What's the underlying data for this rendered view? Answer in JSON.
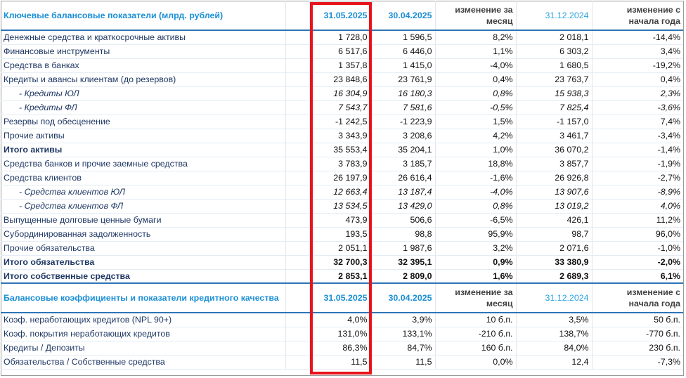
{
  "header": {
    "title": "Ключевые балансовые показатели (млрд. рублей)",
    "col_d1": "31.05.2025",
    "col_d2": "30.04.2025",
    "col_mom": "изменение за месяц",
    "col_ye": "31.12.2024",
    "col_ytd": "изменение с начала года"
  },
  "balance_rows": [
    {
      "label": "Денежные средства и краткосрочные активы",
      "d1": "1 728,0",
      "d2": "1 596,5",
      "mom": "8,2%",
      "ye": "2 018,1",
      "ytd": "-14,4%",
      "style": "data"
    },
    {
      "label": "Финансовые инструменты",
      "d1": "6 517,6",
      "d2": "6 446,0",
      "mom": "1,1%",
      "ye": "6 303,2",
      "ytd": "3,4%",
      "style": "data"
    },
    {
      "label": "Средства в банках",
      "d1": "1 357,8",
      "d2": "1 415,0",
      "mom": "-4,0%",
      "ye": "1 680,5",
      "ytd": "-19,2%",
      "style": "data"
    },
    {
      "label": "Кредиты и авансы клиентам (до резервов)",
      "d1": "23 848,6",
      "d2": "23 761,9",
      "mom": "0,4%",
      "ye": "23 763,7",
      "ytd": "0,4%",
      "style": "data"
    },
    {
      "label": "-   Кредиты ЮЛ",
      "d1": "16 304,9",
      "d2": "16 180,3",
      "mom": "0,8%",
      "ye": "15 938,3",
      "ytd": "2,3%",
      "style": "sub"
    },
    {
      "label": "-   Кредиты ФЛ",
      "d1": "7 543,7",
      "d2": "7 581,6",
      "mom": "-0,5%",
      "ye": "7 825,4",
      "ytd": "-3,6%",
      "style": "sub"
    },
    {
      "label": "Резервы под обесценение",
      "d1": "-1 242,5",
      "d2": "-1 223,9",
      "mom": "1,5%",
      "ye": "-1 157,0",
      "ytd": "7,4%",
      "style": "data"
    },
    {
      "label": "Прочие активы",
      "d1": "3 343,9",
      "d2": "3 208,6",
      "mom": "4,2%",
      "ye": "3 461,7",
      "ytd": "-3,4%",
      "style": "data"
    },
    {
      "label": "Итого активы",
      "d1": "35 553,4",
      "d2": "35 204,1",
      "mom": "1,0%",
      "ye": "36 070,2",
      "ytd": "-1,4%",
      "style": "bold-label"
    },
    {
      "label": "Средства банков и прочие заемные средства",
      "d1": "3 783,9",
      "d2": "3 185,7",
      "mom": "18,8%",
      "ye": "3 857,7",
      "ytd": "-1,9%",
      "style": "data"
    },
    {
      "label": "Средства клиентов",
      "d1": "26 197,9",
      "d2": "26 616,4",
      "mom": "-1,6%",
      "ye": "26 926,8",
      "ytd": "-2,7%",
      "style": "data"
    },
    {
      "label": "-   Средства клиентов ЮЛ",
      "d1": "12 663,4",
      "d2": "13 187,4",
      "mom": "-4,0%",
      "ye": "13 907,6",
      "ytd": "-8,9%",
      "style": "sub"
    },
    {
      "label": "-   Средства клиентов ФЛ",
      "d1": "13 534,5",
      "d2": "13 429,0",
      "mom": "0,8%",
      "ye": "13 019,2",
      "ytd": "4,0%",
      "style": "sub"
    },
    {
      "label": "Выпущенные долговые ценные бумаги",
      "d1": "473,9",
      "d2": "506,6",
      "mom": "-6,5%",
      "ye": "426,1",
      "ytd": "11,2%",
      "style": "data"
    },
    {
      "label": "Субординированная задолженность",
      "d1": "193,5",
      "d2": "98,8",
      "mom": "95,9%",
      "ye": "98,7",
      "ytd": "96,0%",
      "style": "data"
    },
    {
      "label": "Прочие обязательства",
      "d1": "2 051,1",
      "d2": "1 987,6",
      "mom": "3,2%",
      "ye": "2 071,6",
      "ytd": "-1,0%",
      "style": "data"
    },
    {
      "label": "Итого обязательства",
      "d1": "32 700,3",
      "d2": "32 395,1",
      "mom": "0,9%",
      "ye": "33 380,9",
      "ytd": "-2,0%",
      "style": "bold"
    },
    {
      "label": "Итого собственные средства",
      "d1": "2 853,1",
      "d2": "2 809,0",
      "mom": "1,6%",
      "ye": "2 689,3",
      "ytd": "6,1%",
      "style": "bold"
    }
  ],
  "header2": {
    "title": "Балансовые коэффициенты  и показатели кредитного качества",
    "col_d1": "31.05.2025",
    "col_d2": "30.04.2025",
    "col_mom": "изменение за месяц",
    "col_ye": "31.12.2024",
    "col_ytd": "изменение с начала года"
  },
  "ratio_rows": [
    {
      "label": "Коэф. неработающих кредитов (NPL 90+)",
      "d1": "4,0%",
      "d2": "3,9%",
      "mom": "10 б.п.",
      "ye": "3,5%",
      "ytd": "50 б.п."
    },
    {
      "label": "Коэф. покрытия неработающих кредитов",
      "d1": "131,0%",
      "d2": "133,1%",
      "mom": "-210 б.п.",
      "ye": "138,7%",
      "ytd": "-770 б.п."
    },
    {
      "label": "Кредиты / Депозиты",
      "d1": "86,3%",
      "d2": "84,7%",
      "mom": "160 б.п.",
      "ye": "84,0%",
      "ytd": "230 б.п."
    },
    {
      "label": "Обязательства / Собственные средства",
      "d1": "11,5",
      "d2": "11,5",
      "mom": "0,0%",
      "ye": "12,4",
      "ytd": "-7,3%"
    }
  ],
  "colors": {
    "header_blue": "#1a8fd6",
    "label_navy": "#1f3864",
    "highlight_red": "#e8141c",
    "rule_blue": "#2e75b6"
  }
}
